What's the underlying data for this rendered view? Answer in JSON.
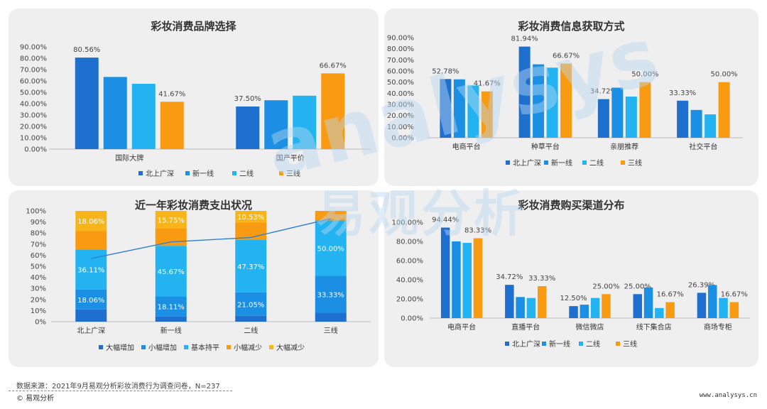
{
  "colors": {
    "north": "#1f6fcf",
    "tier1": "#1a8fe3",
    "tier2": "#23b3f0",
    "tier3": "#f89a12",
    "chg_big_up": "#1f6fcf",
    "chg_small_up": "#1a8fe3",
    "chg_flat": "#23b3f0",
    "chg_small_down": "#f89a12",
    "chg_big_down": "#f7b519",
    "line": "#2f7fd0"
  },
  "watermark": {
    "latin": "analysys",
    "cn": "易观分析"
  },
  "footer": {
    "source": "数据来源：2021年9月易观分析彩妆消费行为调查问卷，N=237",
    "brand": "© 易观分析",
    "url": "www.analysys.cn"
  },
  "chart_data": [
    {
      "id": "brand",
      "type": "bar",
      "title": "彩妆消费品牌选择",
      "categories": [
        "国际大牌",
        "国产平价"
      ],
      "ylim": [
        0,
        90
      ],
      "yticks": [
        "0.00%",
        "10.00%",
        "20.00%",
        "30.00%",
        "40.00%",
        "50.00%",
        "60.00%",
        "70.00%",
        "80.00%",
        "90.00%"
      ],
      "series": [
        {
          "name": "北上广深",
          "color_key": "north",
          "values": [
            80.56,
            37.5
          ],
          "labels": [
            "80.56%",
            "37.50%"
          ]
        },
        {
          "name": "新一线",
          "color_key": "tier1",
          "values": [
            63.5,
            43.0
          ],
          "labels": [
            "",
            ""
          ]
        },
        {
          "name": "二线",
          "color_key": "tier2",
          "values": [
            57.5,
            47.0
          ],
          "labels": [
            "",
            ""
          ]
        },
        {
          "name": "三线",
          "color_key": "tier3",
          "values": [
            41.67,
            66.67
          ],
          "labels": [
            "41.67%",
            "66.67%"
          ]
        }
      ],
      "grid": false,
      "legend": "bottom"
    },
    {
      "id": "info",
      "type": "bar",
      "title": "彩妆消费信息获取方式",
      "categories": [
        "电商平台",
        "种草平台",
        "亲朋推荐",
        "社交平台"
      ],
      "ylim": [
        0,
        90
      ],
      "yticks": [
        "0.00%",
        "10.00%",
        "20.00%",
        "30.00%",
        "40.00%",
        "50.00%",
        "60.00%",
        "70.00%",
        "80.00%",
        "90.00%"
      ],
      "series": [
        {
          "name": "北上广深",
          "color_key": "north",
          "values": [
            52.78,
            81.94,
            34.72,
            33.33
          ],
          "labels": [
            "52.78%",
            "81.94%",
            "34.72%",
            "33.33%"
          ]
        },
        {
          "name": "新一线",
          "color_key": "tier1",
          "values": [
            52.5,
            66.0,
            45.0,
            25.0
          ],
          "labels": [
            "",
            "",
            "",
            ""
          ]
        },
        {
          "name": "二线",
          "color_key": "tier2",
          "values": [
            47.0,
            63.0,
            37.0,
            21.0
          ],
          "labels": [
            "",
            "",
            "",
            ""
          ]
        },
        {
          "name": "三线",
          "color_key": "tier3",
          "values": [
            41.67,
            66.67,
            50.0,
            50.0
          ],
          "labels": [
            "41.67%",
            "66.67%",
            "50.00%",
            "50.00%"
          ]
        }
      ],
      "grid": false,
      "legend": "bottom"
    },
    {
      "id": "spend",
      "type": "bar",
      "stacked": true,
      "title": "近一年彩妆消费支出状况",
      "categories": [
        "北上广深",
        "新一线",
        "二线",
        "三线"
      ],
      "ylim": [
        0,
        100
      ],
      "yticks": [
        "0%",
        "10%",
        "20%",
        "30%",
        "40%",
        "50%",
        "60%",
        "70%",
        "80%",
        "90%",
        "100%"
      ],
      "series": [
        {
          "name": "大幅增加",
          "color_key": "chg_big_up",
          "values": [
            11.0,
            4.7,
            5.3,
            8.0
          ],
          "labels": [
            "",
            "",
            "",
            ""
          ]
        },
        {
          "name": "小幅增加",
          "color_key": "chg_small_up",
          "values": [
            18.06,
            18.11,
            21.05,
            33.33
          ],
          "labels": [
            "18.06%",
            "18.11%",
            "21.05%",
            "33.33%"
          ]
        },
        {
          "name": "基本持平",
          "color_key": "chg_flat",
          "values": [
            36.11,
            45.67,
            47.37,
            50.0
          ],
          "labels": [
            "36.11%",
            "45.67%",
            "47.37%",
            "50.00%"
          ]
        },
        {
          "name": "小幅减少",
          "color_key": "chg_small_down",
          "values": [
            16.77,
            15.77,
            15.75,
            8.67
          ],
          "labels": [
            "",
            "",
            "",
            ""
          ]
        },
        {
          "name": "大幅减少",
          "color_key": "chg_big_down",
          "values": [
            18.06,
            15.75,
            10.53,
            0.0
          ],
          "labels": [
            "18.06%",
            "15.75%",
            "10.53%",
            ""
          ]
        }
      ],
      "trend_line": [
        57.0,
        72.0,
        76.0,
        93.0
      ],
      "grid": false,
      "legend": "bottom"
    },
    {
      "id": "channel",
      "type": "bar",
      "title": "彩妆消费购买渠道分布",
      "categories": [
        "电商平台",
        "直播平台",
        "微信微店",
        "线下集合店",
        "商场专柜"
      ],
      "ylim": [
        0,
        100
      ],
      "yticks": [
        "0.00%",
        "20.00%",
        "40.00%",
        "60.00%",
        "80.00%",
        "100.00%"
      ],
      "series": [
        {
          "name": "北上广深",
          "color_key": "north",
          "values": [
            94.44,
            34.72,
            12.5,
            25.0,
            26.39
          ],
          "labels": [
            "94.44%",
            "34.72%",
            "12.50%",
            "25.00%",
            "26.39%"
          ]
        },
        {
          "name": "新一线",
          "color_key": "tier1",
          "values": [
            80.0,
            22.0,
            14.0,
            32.0,
            34.5
          ],
          "labels": [
            "",
            "",
            "",
            "",
            ""
          ]
        },
        {
          "name": "二线",
          "color_key": "tier2",
          "values": [
            78.5,
            21.0,
            21.0,
            10.5,
            21.0
          ],
          "labels": [
            "",
            "",
            "",
            "",
            ""
          ]
        },
        {
          "name": "三线",
          "color_key": "tier3",
          "values": [
            83.33,
            33.33,
            25.0,
            16.67,
            16.67
          ],
          "labels": [
            "83.33%",
            "33.33%",
            "25.00%",
            "16.67%",
            "16.67%"
          ]
        }
      ],
      "grid": false,
      "legend": "bottom"
    }
  ]
}
